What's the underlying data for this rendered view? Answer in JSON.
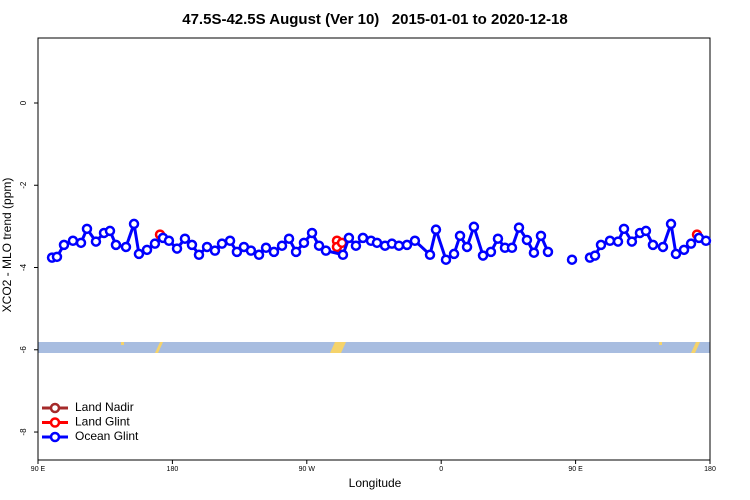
{
  "chart_data": {
    "type": "line",
    "title": "47.5S-42.5S August (Ver 10)   2015-01-01 to 2020-12-18",
    "x_label": "Longitude",
    "y_label": "XCO2 - MLO trend (ppm)",
    "xlim": [
      90,
      540
    ],
    "ylim": [
      -8.68,
      1.58
    ],
    "xticks": [
      {
        "value": 90,
        "label": "90 E"
      },
      180,
      {
        "value": 270,
        "label": "90 W"
      },
      {
        "value": 360,
        "label": "0"
      },
      {
        "value": 450,
        "label": "90 E"
      },
      {
        "value": 540,
        "label": "180"
      }
    ],
    "yticks": [
      0,
      -2,
      -4,
      -6,
      -8
    ],
    "legend": "bottom-left",
    "series": [
      {
        "name": "Land Nadir",
        "color": "#a52a2a",
        "x": [],
        "values": []
      },
      {
        "name": "Land Glint",
        "color": "#ff0000",
        "x": [
          171.7,
          230,
          290.2,
          290.2,
          293.6,
          410,
          531.3
        ],
        "values": [
          -3.2,
          null,
          -3.35,
          -3.5,
          -3.4,
          null,
          -3.2
        ]
      },
      {
        "name": "Ocean Glint",
        "color": "#0000ff",
        "x": [
          99.4,
          102.7,
          107.4,
          113.4,
          118.8,
          122.8,
          128.8,
          134.2,
          138.2,
          142.2,
          148.9,
          154.3,
          157.6,
          163.0,
          168.3,
          173.7,
          177.7,
          183.1,
          188.4,
          193.1,
          197.8,
          203.2,
          208.5,
          213.2,
          218.6,
          223.2,
          227.9,
          232.6,
          238.0,
          242.7,
          248.0,
          253.4,
          258.1,
          262.8,
          268.1,
          273.5,
          278.2,
          282.8,
          294.2,
          298.2,
          302.9,
          307.6,
          313.0,
          317.0,
          322.4,
          327.0,
          331.7,
          337.1,
          342.4,
          352.5,
          356.5,
          363.2,
          368.6,
          372.6,
          377.3,
          381.9,
          388.0,
          393.3,
          398.0,
          402.7,
          407.4,
          412.1,
          417.4,
          422.1,
          426.8,
          431.5,
          439.5,
          447.6,
          453.6,
          459.6,
          463.0,
          467.0,
          473.0,
          478.4,
          482.4,
          487.7,
          493.1,
          497.1,
          501.8,
          508.5,
          513.9,
          517.2,
          522.6,
          527.3,
          532.6,
          537.3
        ],
        "values": [
          -3.76,
          -3.74,
          -3.45,
          -3.35,
          -3.4,
          -3.06,
          -3.37,
          -3.16,
          -3.11,
          -3.45,
          -3.5,
          -2.94,
          -3.67,
          -3.57,
          -3.42,
          -3.28,
          -3.35,
          -3.54,
          -3.3,
          -3.45,
          -3.69,
          -3.5,
          -3.59,
          -3.42,
          -3.35,
          -3.62,
          -3.5,
          -3.59,
          -3.69,
          -3.52,
          -3.62,
          -3.47,
          -3.3,
          -3.62,
          -3.4,
          -3.16,
          -3.47,
          -3.59,
          -3.69,
          -3.28,
          -3.47,
          -3.28,
          -3.35,
          -3.4,
          -3.47,
          -3.42,
          -3.47,
          -3.45,
          -3.35,
          -3.69,
          -3.08,
          -3.81,
          -3.67,
          -3.23,
          -3.5,
          -3.01,
          -3.71,
          -3.62,
          -3.3,
          -3.52,
          -3.52,
          -3.03,
          -3.33,
          -3.64,
          -3.23,
          -3.62,
          null,
          -3.81,
          null,
          -3.76,
          -3.71,
          -3.45,
          -3.35,
          -3.37,
          -3.06,
          -3.37,
          -3.16,
          -3.11,
          -3.45,
          -3.5,
          -2.94,
          -3.67,
          -3.57,
          -3.42,
          -3.28,
          -3.35
        ]
      }
    ]
  }
}
